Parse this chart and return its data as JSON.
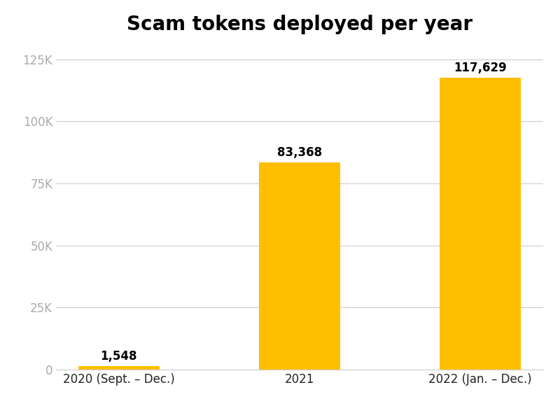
{
  "title": "Scam tokens deployed per year",
  "categories": [
    "2020 (Sept. – Dec.)",
    "2021",
    "2022 (Jan. – Dec.)"
  ],
  "values": [
    1548,
    83368,
    117629
  ],
  "labels": [
    "1,548",
    "83,368",
    "117,629"
  ],
  "bar_color": "#FFBF00",
  "background_color": "#ffffff",
  "ylim": [
    0,
    132000
  ],
  "yticks": [
    0,
    25000,
    50000,
    75000,
    100000,
    125000
  ],
  "ytick_labels": [
    "0",
    "25K",
    "50K",
    "75K",
    "100K",
    "125K"
  ],
  "title_fontsize": 20,
  "label_fontsize": 12,
  "tick_fontsize": 12,
  "bar_width": 0.45,
  "grid_color": "#cccccc",
  "ytick_color": "#aaaaaa",
  "xtick_color": "#222222"
}
